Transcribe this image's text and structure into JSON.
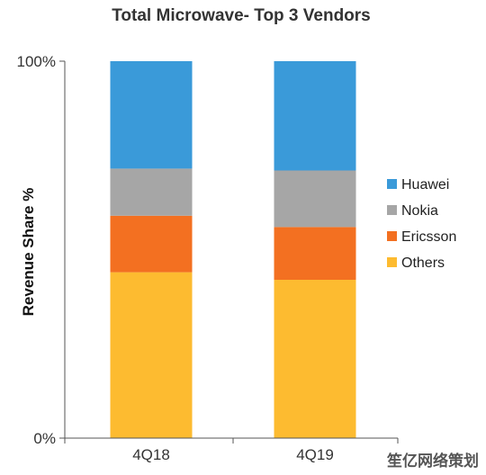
{
  "watermark": "笙亿网络策划",
  "chart_data": {
    "type": "bar",
    "stacked": true,
    "title": "Total Microwave- Top 3 Vendors",
    "xlabel": "",
    "ylabel": "Revenue Share %",
    "categories": [
      "4Q18",
      "4Q19"
    ],
    "ylim": [
      0,
      100
    ],
    "yticks": [
      {
        "value": 0,
        "label": "0%"
      },
      {
        "value": 100,
        "label": "100%"
      }
    ],
    "grid": false,
    "legend_position": "right",
    "series": [
      {
        "name": "Others",
        "color": "#FDBB30",
        "values": [
          44,
          42
        ]
      },
      {
        "name": "Ericsson",
        "color": "#F37021",
        "values": [
          15,
          14
        ]
      },
      {
        "name": "Nokia",
        "color": "#A6A6A6",
        "values": [
          12.5,
          15
        ]
      },
      {
        "name": "Huawei",
        "color": "#3A9AD9",
        "values": [
          28.5,
          29
        ]
      }
    ],
    "legend_order": [
      "Huawei",
      "Nokia",
      "Ericsson",
      "Others"
    ]
  }
}
